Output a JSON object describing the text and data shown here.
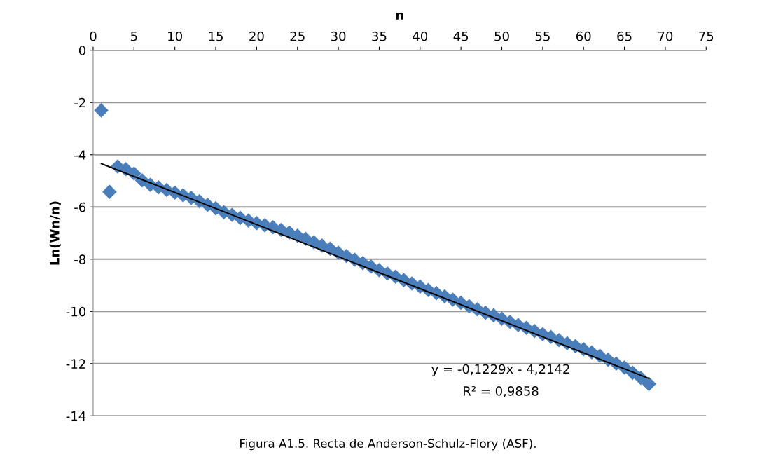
{
  "chart_data": {
    "type": "scatter",
    "xlabel": "n",
    "ylabel": "Ln(Wn/n)",
    "xlim": [
      0,
      75
    ],
    "xticks": [
      0,
      5,
      10,
      15,
      20,
      25,
      30,
      35,
      40,
      45,
      50,
      55,
      60,
      65,
      70,
      75
    ],
    "ylim": [
      -14,
      0
    ],
    "yticks": [
      -14,
      -12,
      -10,
      -8,
      -6,
      -4,
      -2,
      0
    ],
    "grid": "y",
    "series": [
      {
        "marker": "diamond",
        "color": "#4a7ebb",
        "x": [
          1,
          2,
          3,
          4,
          5,
          6,
          7,
          8,
          9,
          10,
          11,
          12,
          13,
          14,
          15,
          16,
          17,
          18,
          19,
          20,
          21,
          22,
          23,
          24,
          25,
          26,
          27,
          28,
          29,
          30,
          31,
          32,
          33,
          34,
          35,
          36,
          37,
          38,
          39,
          40,
          41,
          42,
          43,
          44,
          45,
          46,
          47,
          48,
          49,
          50,
          51,
          52,
          53,
          54,
          55,
          56,
          57,
          58,
          59,
          60,
          61,
          62,
          63,
          64,
          65,
          66,
          67,
          68
        ],
        "values": [
          -2.3,
          -5.42,
          -4.45,
          -4.55,
          -4.72,
          -4.98,
          -5.15,
          -5.25,
          -5.35,
          -5.45,
          -5.55,
          -5.65,
          -5.78,
          -5.92,
          -6.05,
          -6.2,
          -6.3,
          -6.42,
          -6.52,
          -6.62,
          -6.7,
          -6.78,
          -6.88,
          -6.98,
          -7.1,
          -7.22,
          -7.35,
          -7.48,
          -7.6,
          -7.75,
          -7.88,
          -8.02,
          -8.15,
          -8.28,
          -8.42,
          -8.55,
          -8.67,
          -8.8,
          -8.93,
          -9.05,
          -9.18,
          -9.3,
          -9.42,
          -9.55,
          -9.67,
          -9.8,
          -9.92,
          -10.05,
          -10.15,
          -10.28,
          -10.4,
          -10.52,
          -10.63,
          -10.75,
          -10.87,
          -10.98,
          -11.1,
          -11.22,
          -11.33,
          -11.45,
          -11.57,
          -11.7,
          -11.85,
          -12.0,
          -12.15,
          -12.35,
          -12.55,
          -12.78
        ]
      },
      {
        "type": "line",
        "marker": "none",
        "color": "#000000",
        "x": [
          1,
          68
        ],
        "values": [
          -4.34,
          -12.57
        ]
      }
    ],
    "annotations": [
      "y = -0,1229x - 4,2142",
      "R² = 0,9858",
      "Figura A1.5. Recta de Anderson-Schulz-Flory (ASF)."
    ]
  }
}
